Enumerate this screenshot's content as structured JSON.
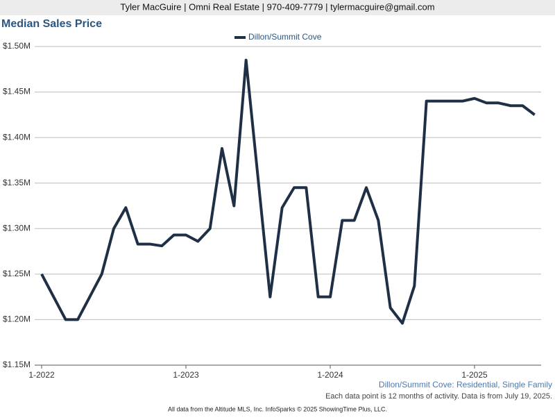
{
  "header": "Tyler MacGuire | Omni Real Estate | 970-409-7779 | tylermacguire@gmail.com",
  "chart_data": {
    "type": "line",
    "title": "Median Sales Price",
    "categories": [
      "1-2022",
      null,
      null,
      null,
      null,
      null,
      null,
      null,
      null,
      null,
      null,
      null,
      "1-2023",
      null,
      null,
      null,
      null,
      null,
      null,
      null,
      null,
      null,
      null,
      null,
      "1-2024",
      null,
      null,
      null,
      null,
      null,
      null,
      null,
      null,
      null,
      null,
      null,
      "1-2025",
      null,
      null,
      null,
      null,
      null
    ],
    "series": [
      {
        "name": "Dillon/Summit Cove",
        "color": "#1f2f46",
        "values": [
          1250000,
          1225000,
          1200000,
          1200000,
          1225000,
          1250000,
          1300000,
          1323000,
          1283000,
          1283000,
          1281000,
          1293000,
          1293000,
          1286000,
          1300000,
          1388000,
          1325000,
          1485000,
          1355000,
          1225000,
          1323000,
          1345000,
          1345000,
          1225000,
          1225000,
          1309000,
          1309000,
          1345000,
          1309000,
          1213000,
          1196000,
          1237000,
          1440000,
          1440000,
          1440000,
          1440000,
          1443000,
          1438000,
          1438000,
          1435000,
          1435000,
          1425000
        ]
      }
    ],
    "ylim": [
      1150000,
      1500000
    ],
    "yticks": [
      {
        "value": 1150000,
        "label": "$1.15M"
      },
      {
        "value": 1200000,
        "label": "$1.20M"
      },
      {
        "value": 1250000,
        "label": "$1.25M"
      },
      {
        "value": 1300000,
        "label": "$1.30M"
      },
      {
        "value": 1350000,
        "label": "$1.35M"
      },
      {
        "value": 1400000,
        "label": "$1.40M"
      },
      {
        "value": 1450000,
        "label": "$1.45M"
      },
      {
        "value": 1500000,
        "label": "$1.50M"
      }
    ],
    "grid": true
  },
  "footer": {
    "subject": "Dillon/Summit Cove: Residential, Single Family",
    "note": "Each data point is 12 months of activity. Data is from July 19, 2025.",
    "credit": "All data from the Altitude MLS, Inc. InfoSparks © 2025 ShowingTime Plus, LLC."
  }
}
